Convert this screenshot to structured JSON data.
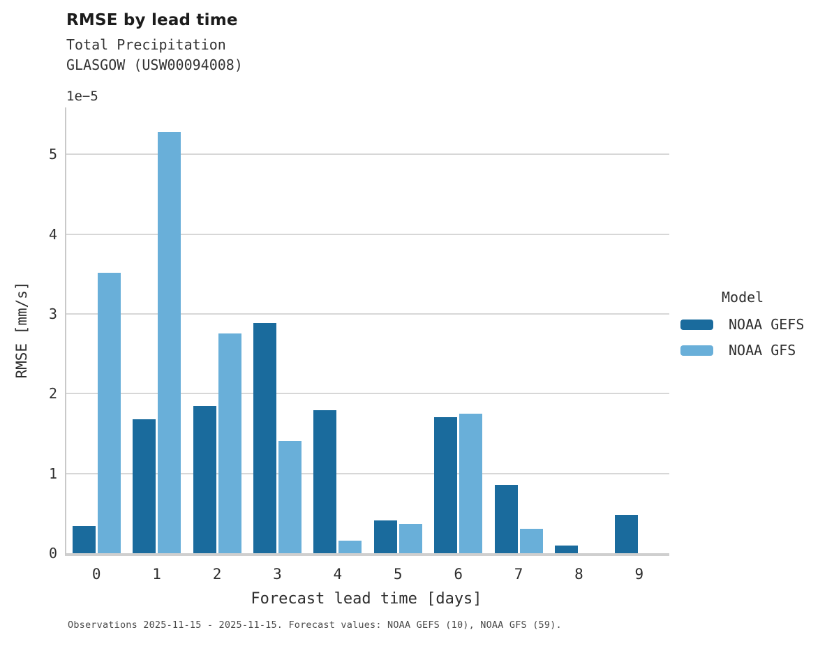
{
  "header": {
    "title": "RMSE by lead time",
    "subtitle_variable": "Total Precipitation",
    "subtitle_station": "GLASGOW (USW00094008)"
  },
  "caption": "Observations 2025-11-15 - 2025-11-15. Forecast values: NOAA GEFS (10), NOAA GFS (59).",
  "legend": {
    "title": "Model",
    "items": [
      {
        "label": "NOAA GEFS",
        "color": "#1A6B9D"
      },
      {
        "label": "NOAA GFS",
        "color": "#69AFD9"
      }
    ]
  },
  "colors": {
    "gefs_bar": "#1A6B9D",
    "gfs_bar": "#69AFD9",
    "gridline": "#d7d7d7"
  },
  "chart_data": {
    "type": "bar",
    "title": "RMSE by lead time",
    "xlabel": "Forecast lead time [days]",
    "ylabel": "RMSE [mm/s]",
    "y_offset_label": "1e−5",
    "unit_scale": 1e-05,
    "categories": [
      "0",
      "1",
      "2",
      "3",
      "4",
      "5",
      "6",
      "7",
      "8",
      "9"
    ],
    "yticks": [
      "0",
      "1",
      "2",
      "3",
      "4",
      "5"
    ],
    "ylim": [
      0,
      5.59
    ],
    "grid": true,
    "legend_position": "right",
    "series": [
      {
        "name": "NOAA GEFS",
        "color": "#1A6B9D",
        "values": [
          0.34,
          1.68,
          1.85,
          2.89,
          1.79,
          0.41,
          1.71,
          0.86,
          0.1,
          0.48
        ]
      },
      {
        "name": "NOAA GFS",
        "color": "#69AFD9",
        "values": [
          3.52,
          5.28,
          2.76,
          1.41,
          0.16,
          0.37,
          1.75,
          0.31,
          null,
          null
        ]
      }
    ]
  }
}
